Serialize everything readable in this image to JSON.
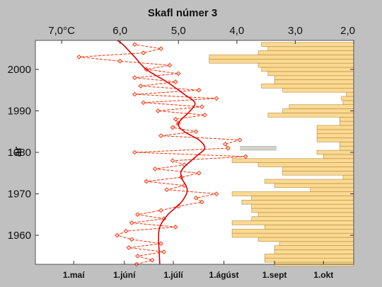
{
  "chart_data": {
    "type": "line",
    "title": "Skafl númer 3",
    "ylabel": "ár",
    "top_axis": {
      "ticks": [
        {
          "value": 7.0,
          "label": "7,0°C"
        },
        {
          "value": 6.0,
          "label": "6,0"
        },
        {
          "value": 5.0,
          "label": "5,0"
        },
        {
          "value": 4.0,
          "label": "4,0"
        },
        {
          "value": 3.0,
          "label": "3,0"
        },
        {
          "value": 2.0,
          "label": "2,0"
        }
      ],
      "range": [
        7.45,
        2.0
      ]
    },
    "bottom_axis": {
      "ticks": [
        {
          "day": 121,
          "label": "1.maí"
        },
        {
          "day": 152,
          "label": "1.júní"
        },
        {
          "day": 182,
          "label": "1.júlí"
        },
        {
          "day": 213,
          "label": "1.ágúst"
        },
        {
          "day": 244,
          "label": "1.sept"
        },
        {
          "day": 274,
          "label": "1.okt"
        }
      ],
      "range": [
        97.5,
        292.5
      ]
    },
    "y_axis": {
      "ticks": [
        {
          "value": 1960,
          "label": "1960"
        },
        {
          "value": 1970,
          "label": "1970"
        },
        {
          "value": 1980,
          "label": "1980"
        },
        {
          "value": 1990,
          "label": "1990"
        },
        {
          "value": 2000,
          "label": "2000"
        }
      ],
      "range": [
        1953,
        2007
      ]
    },
    "series": [
      {
        "kind": "annual_temperature",
        "style": "dashed-diamond",
        "color": "#ff2a00",
        "points": [
          [
            5.72,
            1953
          ],
          [
            5.45,
            1954
          ],
          [
            5.7,
            1955
          ],
          [
            5.25,
            1956
          ],
          [
            5.85,
            1957
          ],
          [
            5.3,
            1958
          ],
          [
            5.8,
            1959
          ],
          [
            6.05,
            1960
          ],
          [
            5.9,
            1961
          ],
          [
            5.05,
            1962
          ],
          [
            5.8,
            1963
          ],
          [
            5.25,
            1964
          ],
          [
            5.7,
            1965
          ],
          [
            5.3,
            1966
          ],
          [
            5.0,
            1967
          ],
          [
            4.6,
            1968
          ],
          [
            4.7,
            1969
          ],
          [
            4.35,
            1970
          ],
          [
            5.2,
            1971
          ],
          [
            4.9,
            1972
          ],
          [
            5.55,
            1973
          ],
          [
            4.95,
            1974
          ],
          [
            4.65,
            1975
          ],
          [
            5.4,
            1976
          ],
          [
            4.9,
            1977
          ],
          [
            5.1,
            1978
          ],
          [
            3.85,
            1979
          ],
          [
            5.75,
            1980
          ],
          [
            4.15,
            1981
          ],
          [
            4.2,
            1982
          ],
          [
            3.95,
            1983
          ],
          [
            5.3,
            1984
          ],
          [
            4.7,
            1985
          ],
          [
            5.1,
            1986
          ],
          [
            5.0,
            1987
          ],
          [
            5.05,
            1988
          ],
          [
            4.55,
            1989
          ],
          [
            5.35,
            1990
          ],
          [
            4.6,
            1991
          ],
          [
            5.6,
            1992
          ],
          [
            4.35,
            1993
          ],
          [
            5.75,
            1994
          ],
          [
            4.65,
            1995
          ],
          [
            5.65,
            1996
          ],
          [
            5.05,
            1997
          ],
          [
            5.75,
            1998
          ],
          [
            5.0,
            1999
          ],
          [
            5.55,
            2000
          ],
          [
            5.15,
            2001
          ],
          [
            6.0,
            2002
          ],
          [
            6.7,
            2003
          ],
          [
            5.6,
            2004
          ],
          [
            5.3,
            2005
          ],
          [
            5.75,
            2006
          ]
        ]
      },
      {
        "kind": "smoothed_temperature",
        "style": "solid",
        "color": "#dd0000",
        "points": [
          [
            5.32,
            1953
          ],
          [
            5.33,
            1956
          ],
          [
            5.34,
            1959
          ],
          [
            5.32,
            1962
          ],
          [
            5.18,
            1965
          ],
          [
            4.95,
            1968
          ],
          [
            4.85,
            1971
          ],
          [
            4.95,
            1974
          ],
          [
            4.93,
            1976
          ],
          [
            4.7,
            1979
          ],
          [
            4.55,
            1981
          ],
          [
            4.65,
            1983
          ],
          [
            4.9,
            1985
          ],
          [
            5.0,
            1987
          ],
          [
            4.8,
            1990
          ],
          [
            4.72,
            1992
          ],
          [
            4.9,
            1994
          ],
          [
            5.2,
            1997
          ],
          [
            5.55,
            2000
          ],
          [
            5.75,
            2003
          ],
          [
            5.95,
            2006
          ],
          [
            6.05,
            2007
          ]
        ]
      },
      {
        "kind": "ice_duration",
        "style": "bars",
        "color": "#fcd990",
        "note": "each bar: [year, start_day]; extends to the right edge",
        "bars": [
          [
            1953,
            244
          ],
          [
            1954,
            238
          ],
          [
            1955,
            238
          ],
          [
            1956,
            244
          ],
          [
            1957,
            244
          ],
          [
            1958,
            247
          ],
          [
            1959,
            234
          ],
          [
            1960,
            218
          ],
          [
            1961,
            218
          ],
          [
            1962,
            238
          ],
          [
            1963,
            218
          ],
          [
            1964,
            230
          ],
          [
            1965,
            234
          ],
          [
            1966,
            230
          ],
          [
            1967,
            230
          ],
          [
            1968,
            224
          ],
          [
            1969,
            230
          ],
          [
            1970,
            218
          ],
          [
            1971,
            266
          ],
          [
            1972,
            244
          ],
          [
            1973,
            238
          ],
          [
            1974,
            286
          ],
          [
            1975,
            249
          ],
          [
            1976,
            249
          ],
          [
            1977,
            234
          ],
          [
            1978,
            218
          ],
          [
            1979,
            274
          ],
          [
            1980,
            270
          ],
          [
            1981,
            284
          ],
          [
            1982,
            284
          ],
          [
            1983,
            270
          ],
          [
            1984,
            270
          ],
          [
            1985,
            270
          ],
          [
            1986,
            270
          ],
          [
            1987,
            284
          ],
          [
            1988,
            284
          ],
          [
            1989,
            240
          ],
          [
            1990,
            249
          ],
          [
            1991,
            253
          ],
          [
            1992,
            286
          ],
          [
            1993,
            285
          ],
          [
            1994,
            288
          ],
          [
            1995,
            249
          ],
          [
            1996,
            236
          ],
          [
            1997,
            244
          ],
          [
            1998,
            244
          ],
          [
            1999,
            240
          ],
          [
            2000,
            236
          ],
          [
            2001,
            234
          ],
          [
            2002,
            204
          ],
          [
            2003,
            204
          ],
          [
            2004,
            234
          ],
          [
            2005,
            240
          ],
          [
            2006,
            236
          ]
        ]
      },
      {
        "kind": "marked_year",
        "style": "bar",
        "color": "#d4d2c8",
        "bars": [
          [
            1981,
            223,
            245
          ]
        ]
      }
    ]
  }
}
